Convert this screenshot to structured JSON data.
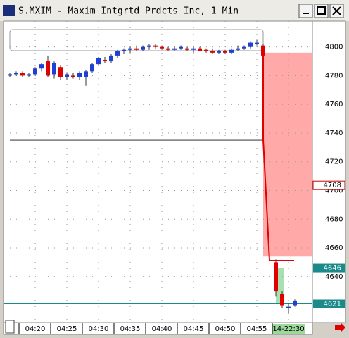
{
  "window": {
    "title": "S.MXIM - Maxim Intgrtd Prdcts Inc, 1 Min"
  },
  "chart_data": {
    "type": "candlestick",
    "categories": [
      null,
      null,
      null,
      null,
      "04:20",
      null,
      null,
      null,
      null,
      "04:25",
      null,
      null,
      null,
      null,
      "04:30",
      null,
      null,
      null,
      null,
      "04:35",
      null,
      null,
      null,
      null,
      "04:40",
      null,
      null,
      null,
      null,
      "04:45",
      null,
      null,
      null,
      null,
      "04:50",
      null,
      null,
      null,
      null,
      "04:55",
      null,
      null,
      null,
      null,
      "14-22:30",
      null
    ],
    "open": [
      4780,
      4781,
      4782,
      4780,
      4781,
      4785,
      4790,
      4781,
      4786,
      4779,
      4780,
      4779,
      4779,
      4783,
      4788,
      4791,
      4790,
      4794,
      4797,
      4798,
      4799,
      4798,
      4800,
      4801,
      4800,
      4799,
      4798,
      4799,
      4799,
      4798,
      4799,
      4798,
      4797,
      4796,
      4797,
      4796,
      4798,
      4799,
      4800,
      4802,
      4801,
      null,
      4650,
      4628,
      4618,
      4620
    ],
    "high": [
      4782,
      4783,
      4783,
      4782,
      4786,
      4789,
      4794,
      4790,
      4787,
      4782,
      4782,
      4783,
      4784,
      4789,
      4793,
      4793,
      4795,
      4798,
      4799,
      4800,
      4801,
      4801,
      4802,
      4802,
      4801,
      4800,
      4800,
      4801,
      4800,
      4800,
      4800,
      4799,
      4799,
      4798,
      4798,
      4799,
      4801,
      4801,
      4804,
      4805,
      4802,
      null,
      4652,
      4630,
      4621,
      4624
    ],
    "low": [
      4779,
      4780,
      4779,
      4779,
      4780,
      4783,
      4779,
      4778,
      4777,
      4777,
      4778,
      4777,
      4773,
      4782,
      4787,
      4789,
      4789,
      4792,
      4795,
      4796,
      4797,
      4797,
      4798,
      4799,
      4798,
      4797,
      4797,
      4798,
      4797,
      4796,
      4797,
      4796,
      4795,
      4795,
      4795,
      4795,
      4797,
      4798,
      4799,
      4801,
      4793,
      null,
      4626,
      4618,
      4614,
      4619
    ],
    "close": [
      4781,
      4782,
      4780,
      4781,
      4785,
      4788,
      4780,
      4789,
      4779,
      4781,
      4779,
      4782,
      4783,
      4788,
      4792,
      4790,
      4794,
      4797,
      4798,
      4799,
      4798,
      4800,
      4801,
      4800,
      4799,
      4798,
      4799,
      4800,
      4798,
      4799,
      4797,
      4797,
      4796,
      4797,
      4796,
      4798,
      4799,
      4800,
      4803,
      4803,
      4794,
      null,
      4630,
      4620,
      4619,
      4623
    ],
    "up_color": "#1f3fd6",
    "down_color": "#e00000",
    "ylim": [
      4608,
      4818
    ],
    "yticks": [
      4640,
      4660,
      4680,
      4700,
      4720,
      4740,
      4760,
      4780,
      4800
    ],
    "grid": true,
    "horizontal_lines": [
      4735,
      4646,
      4621
    ],
    "zone": [
      4654,
      4796
    ],
    "price_tags": [
      4708,
      4646,
      4621
    ]
  }
}
